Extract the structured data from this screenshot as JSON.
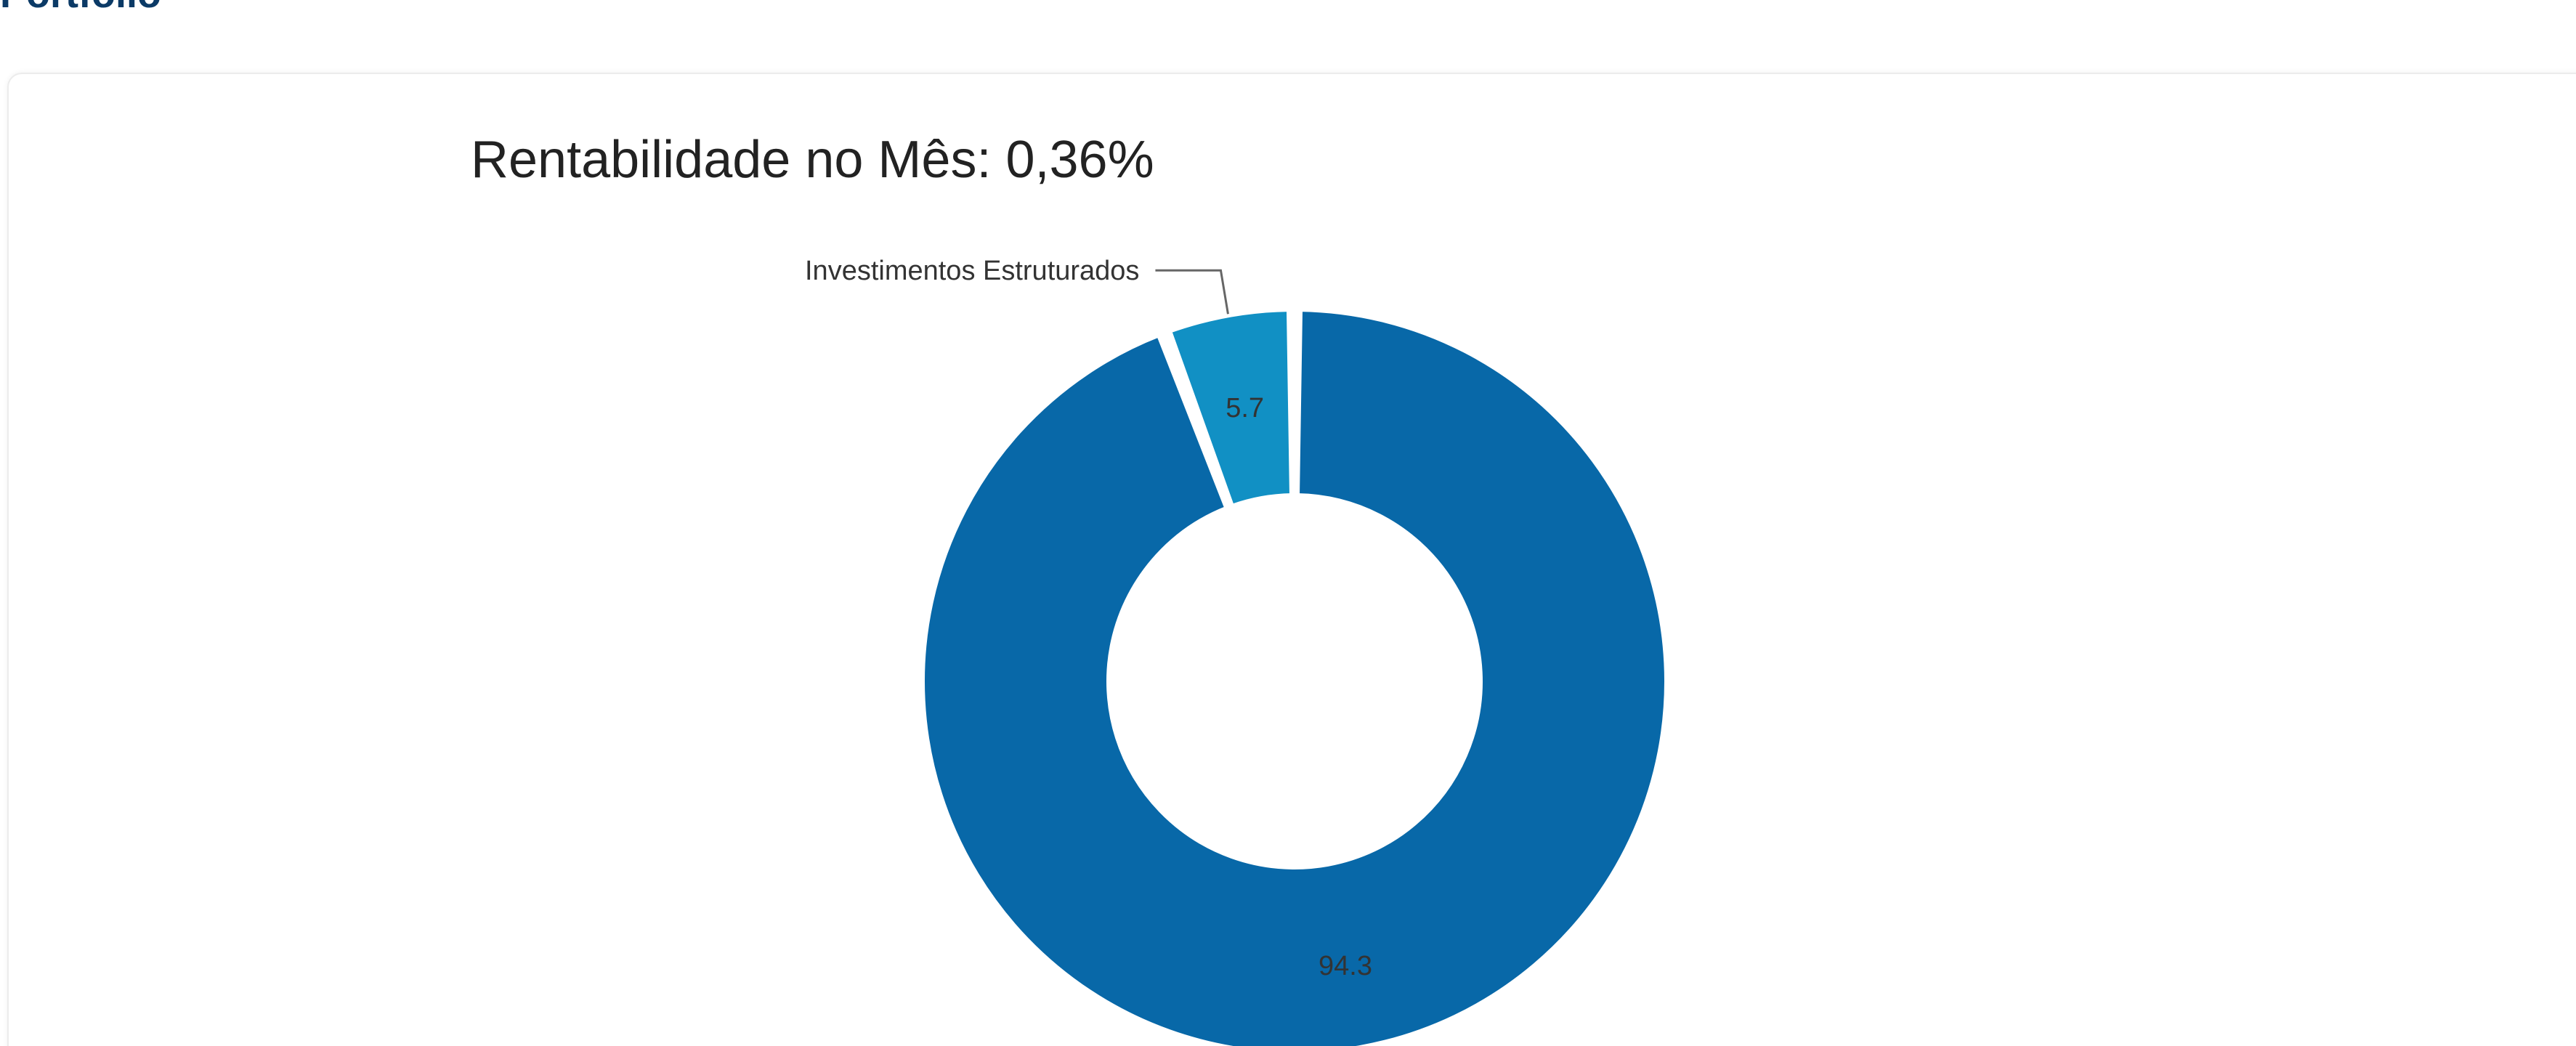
{
  "page": {
    "section_title": "Portfolio"
  },
  "chart_data": {
    "type": "pie",
    "title": "Rentabilidade no Mês: 0,36%",
    "donut": true,
    "slices": [
      {
        "name": "Investimentos Estruturados",
        "value": 5.7,
        "label": "5.7",
        "color": "#1190c4",
        "show_callout": true
      },
      {
        "name": "",
        "value": 94.3,
        "label": "94.3",
        "color": "#0868a8",
        "show_callout": false
      }
    ]
  }
}
